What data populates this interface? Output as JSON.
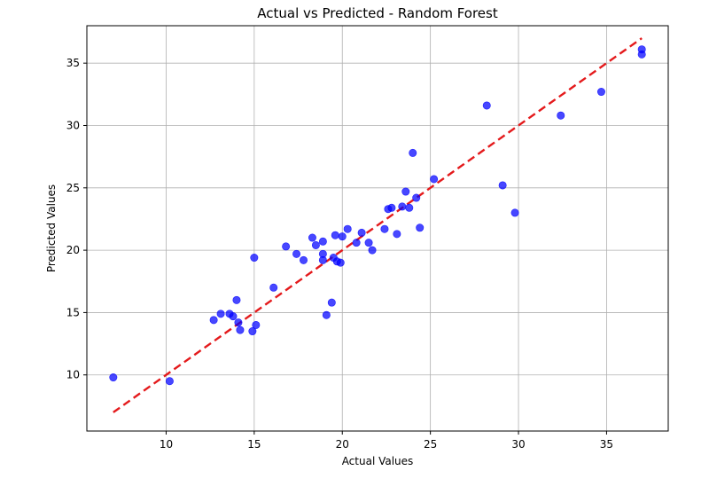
{
  "chart_data": {
    "type": "scatter",
    "title": "Actual vs Predicted - Random Forest",
    "xlabel": "Actual Values",
    "ylabel": "Predicted Values",
    "xlim": [
      5.5,
      38.5
    ],
    "ylim": [
      5.5,
      38.0
    ],
    "xticks": [
      10,
      15,
      20,
      25,
      30,
      35
    ],
    "yticks": [
      10,
      15,
      20,
      25,
      30,
      35
    ],
    "grid": true,
    "colors": {
      "points": "#0000ff",
      "reference_line": "#e41a1c",
      "grid": "#b0b0b0"
    },
    "reference_line": {
      "x": [
        7.0,
        37.0
      ],
      "y": [
        7.0,
        37.0
      ],
      "style": "dashed"
    },
    "series": [
      {
        "points": [
          [
            7.0,
            9.8
          ],
          [
            10.2,
            9.5
          ],
          [
            12.7,
            14.4
          ],
          [
            13.1,
            14.9
          ],
          [
            13.6,
            14.9
          ],
          [
            13.8,
            14.7
          ],
          [
            14.0,
            16.0
          ],
          [
            14.1,
            14.2
          ],
          [
            14.2,
            13.6
          ],
          [
            14.9,
            13.5
          ],
          [
            15.0,
            19.4
          ],
          [
            15.1,
            14.0
          ],
          [
            16.1,
            17.0
          ],
          [
            16.8,
            20.3
          ],
          [
            17.4,
            19.7
          ],
          [
            17.8,
            19.2
          ],
          [
            18.3,
            21.0
          ],
          [
            18.5,
            20.4
          ],
          [
            18.9,
            19.2
          ],
          [
            18.9,
            19.7
          ],
          [
            18.9,
            20.7
          ],
          [
            19.1,
            14.8
          ],
          [
            19.4,
            15.8
          ],
          [
            19.5,
            19.4
          ],
          [
            19.6,
            21.2
          ],
          [
            19.7,
            19.1
          ],
          [
            19.9,
            19.0
          ],
          [
            20.0,
            21.1
          ],
          [
            20.3,
            21.7
          ],
          [
            20.8,
            20.6
          ],
          [
            21.1,
            21.4
          ],
          [
            21.5,
            20.6
          ],
          [
            21.7,
            20.0
          ],
          [
            22.4,
            21.7
          ],
          [
            22.6,
            23.3
          ],
          [
            22.8,
            23.4
          ],
          [
            23.1,
            21.3
          ],
          [
            23.4,
            23.5
          ],
          [
            23.6,
            24.7
          ],
          [
            23.8,
            23.4
          ],
          [
            24.0,
            27.8
          ],
          [
            24.2,
            24.2
          ],
          [
            24.4,
            21.8
          ],
          [
            25.2,
            25.7
          ],
          [
            28.2,
            31.6
          ],
          [
            29.1,
            25.2
          ],
          [
            29.8,
            23.0
          ],
          [
            32.4,
            30.8
          ],
          [
            34.7,
            32.7
          ],
          [
            37.0,
            36.1
          ],
          [
            37.0,
            35.7
          ]
        ]
      }
    ]
  }
}
